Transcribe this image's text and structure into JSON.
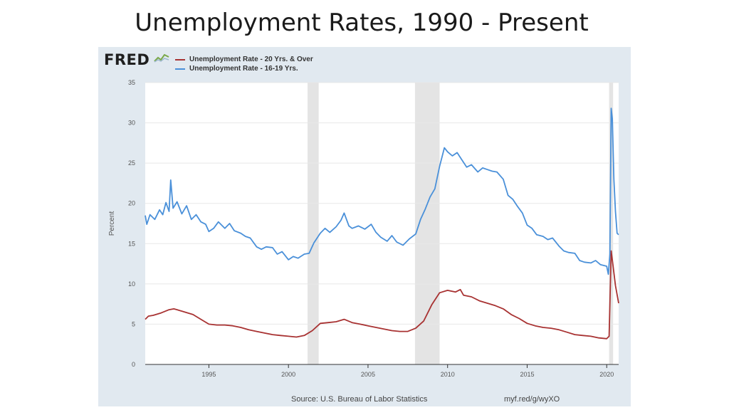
{
  "slide": {
    "title": "Unemployment Rates, 1990 - Present"
  },
  "fred": {
    "logo_text": "FRED",
    "source_text": "Source: U.S. Bureau of Labor Statistics",
    "url_text": "myf.red/g/wyXO",
    "panel_color": "#e1e9f0"
  },
  "chart_data": {
    "type": "line",
    "title": "",
    "xlabel": "",
    "ylabel": "Percent",
    "xlim": [
      1991.0,
      2020.75
    ],
    "ylim": [
      0,
      35
    ],
    "yticks": [
      0,
      5,
      10,
      15,
      20,
      25,
      30,
      35
    ],
    "xticks": [
      1995,
      2000,
      2005,
      2010,
      2015,
      2020
    ],
    "grid": "horizontal",
    "legend_position": "top-left",
    "recessions": [
      [
        2001.2,
        2001.9
      ],
      [
        2007.95,
        2009.5
      ],
      [
        2020.15,
        2020.4
      ]
    ],
    "series": [
      {
        "name": "Unemployment Rate - 20 Yrs. & Over",
        "color": "#a83232",
        "points": [
          [
            1991.0,
            5.6
          ],
          [
            1991.2,
            6.0
          ],
          [
            1991.5,
            6.1
          ],
          [
            1992.0,
            6.4
          ],
          [
            1992.5,
            6.8
          ],
          [
            1992.8,
            6.9
          ],
          [
            1993.0,
            6.8
          ],
          [
            1993.5,
            6.5
          ],
          [
            1994.0,
            6.2
          ],
          [
            1994.5,
            5.6
          ],
          [
            1995.0,
            5.0
          ],
          [
            1995.5,
            4.9
          ],
          [
            1996.0,
            4.9
          ],
          [
            1996.5,
            4.8
          ],
          [
            1997.0,
            4.6
          ],
          [
            1997.5,
            4.3
          ],
          [
            1998.0,
            4.1
          ],
          [
            1998.5,
            3.9
          ],
          [
            1999.0,
            3.7
          ],
          [
            1999.5,
            3.6
          ],
          [
            2000.0,
            3.5
          ],
          [
            2000.5,
            3.4
          ],
          [
            2001.0,
            3.6
          ],
          [
            2001.5,
            4.2
          ],
          [
            2002.0,
            5.1
          ],
          [
            2002.5,
            5.2
          ],
          [
            2003.0,
            5.3
          ],
          [
            2003.5,
            5.6
          ],
          [
            2004.0,
            5.2
          ],
          [
            2004.5,
            5.0
          ],
          [
            2005.0,
            4.8
          ],
          [
            2005.5,
            4.6
          ],
          [
            2006.0,
            4.4
          ],
          [
            2006.5,
            4.2
          ],
          [
            2007.0,
            4.1
          ],
          [
            2007.5,
            4.1
          ],
          [
            2008.0,
            4.5
          ],
          [
            2008.5,
            5.4
          ],
          [
            2009.0,
            7.4
          ],
          [
            2009.5,
            8.9
          ],
          [
            2010.0,
            9.2
          ],
          [
            2010.5,
            9.0
          ],
          [
            2010.8,
            9.3
          ],
          [
            2011.0,
            8.6
          ],
          [
            2011.5,
            8.4
          ],
          [
            2012.0,
            7.9
          ],
          [
            2012.5,
            7.6
          ],
          [
            2013.0,
            7.3
          ],
          [
            2013.5,
            6.9
          ],
          [
            2014.0,
            6.2
          ],
          [
            2014.5,
            5.7
          ],
          [
            2015.0,
            5.1
          ],
          [
            2015.5,
            4.8
          ],
          [
            2016.0,
            4.6
          ],
          [
            2016.5,
            4.5
          ],
          [
            2017.0,
            4.3
          ],
          [
            2017.5,
            4.0
          ],
          [
            2018.0,
            3.7
          ],
          [
            2018.5,
            3.6
          ],
          [
            2019.0,
            3.5
          ],
          [
            2019.5,
            3.3
          ],
          [
            2020.0,
            3.2
          ],
          [
            2020.15,
            3.5
          ],
          [
            2020.28,
            14.1
          ],
          [
            2020.4,
            12.2
          ],
          [
            2020.55,
            9.8
          ],
          [
            2020.75,
            7.6
          ]
        ]
      },
      {
        "name": "Unemployment Rate - 16-19 Yrs.",
        "color": "#4a90d9",
        "points": [
          [
            1991.0,
            18.5
          ],
          [
            1991.1,
            17.4
          ],
          [
            1991.3,
            18.6
          ],
          [
            1991.6,
            18.0
          ],
          [
            1991.9,
            19.2
          ],
          [
            1992.1,
            18.6
          ],
          [
            1992.3,
            20.1
          ],
          [
            1992.5,
            19.0
          ],
          [
            1992.6,
            22.9
          ],
          [
            1992.75,
            19.4
          ],
          [
            1993.0,
            20.2
          ],
          [
            1993.3,
            18.7
          ],
          [
            1993.6,
            19.7
          ],
          [
            1993.9,
            18.0
          ],
          [
            1994.2,
            18.6
          ],
          [
            1994.5,
            17.7
          ],
          [
            1994.8,
            17.4
          ],
          [
            1995.0,
            16.5
          ],
          [
            1995.3,
            16.9
          ],
          [
            1995.6,
            17.7
          ],
          [
            1996.0,
            16.9
          ],
          [
            1996.3,
            17.5
          ],
          [
            1996.6,
            16.6
          ],
          [
            1997.0,
            16.3
          ],
          [
            1997.3,
            15.9
          ],
          [
            1997.6,
            15.7
          ],
          [
            1998.0,
            14.6
          ],
          [
            1998.3,
            14.3
          ],
          [
            1998.6,
            14.6
          ],
          [
            1999.0,
            14.5
          ],
          [
            1999.3,
            13.7
          ],
          [
            1999.6,
            14.0
          ],
          [
            2000.0,
            13.0
          ],
          [
            2000.3,
            13.4
          ],
          [
            2000.6,
            13.2
          ],
          [
            2001.0,
            13.7
          ],
          [
            2001.3,
            13.8
          ],
          [
            2001.6,
            15.1
          ],
          [
            2002.0,
            16.3
          ],
          [
            2002.3,
            16.9
          ],
          [
            2002.6,
            16.4
          ],
          [
            2003.0,
            17.1
          ],
          [
            2003.3,
            17.9
          ],
          [
            2003.5,
            18.8
          ],
          [
            2003.8,
            17.2
          ],
          [
            2004.0,
            16.9
          ],
          [
            2004.4,
            17.2
          ],
          [
            2004.8,
            16.8
          ],
          [
            2005.2,
            17.4
          ],
          [
            2005.5,
            16.4
          ],
          [
            2005.8,
            15.8
          ],
          [
            2006.2,
            15.3
          ],
          [
            2006.5,
            16.0
          ],
          [
            2006.8,
            15.2
          ],
          [
            2007.2,
            14.8
          ],
          [
            2007.6,
            15.6
          ],
          [
            2008.0,
            16.2
          ],
          [
            2008.3,
            18.0
          ],
          [
            2008.6,
            19.3
          ],
          [
            2008.9,
            20.8
          ],
          [
            2009.2,
            21.8
          ],
          [
            2009.5,
            24.6
          ],
          [
            2009.8,
            26.9
          ],
          [
            2010.0,
            26.4
          ],
          [
            2010.3,
            25.9
          ],
          [
            2010.6,
            26.3
          ],
          [
            2010.9,
            25.4
          ],
          [
            2011.2,
            24.5
          ],
          [
            2011.5,
            24.8
          ],
          [
            2011.9,
            23.9
          ],
          [
            2012.2,
            24.4
          ],
          [
            2012.5,
            24.2
          ],
          [
            2012.8,
            24.0
          ],
          [
            2013.1,
            23.9
          ],
          [
            2013.5,
            23.0
          ],
          [
            2013.8,
            21.0
          ],
          [
            2014.1,
            20.5
          ],
          [
            2014.4,
            19.6
          ],
          [
            2014.7,
            18.8
          ],
          [
            2015.0,
            17.3
          ],
          [
            2015.3,
            16.9
          ],
          [
            2015.6,
            16.1
          ],
          [
            2016.0,
            15.9
          ],
          [
            2016.3,
            15.5
          ],
          [
            2016.6,
            15.7
          ],
          [
            2017.0,
            14.7
          ],
          [
            2017.3,
            14.1
          ],
          [
            2017.6,
            13.9
          ],
          [
            2018.0,
            13.8
          ],
          [
            2018.3,
            12.9
          ],
          [
            2018.6,
            12.7
          ],
          [
            2019.0,
            12.6
          ],
          [
            2019.3,
            12.9
          ],
          [
            2019.6,
            12.4
          ],
          [
            2020.0,
            12.2
          ],
          [
            2020.1,
            11.2
          ],
          [
            2020.2,
            13.7
          ],
          [
            2020.28,
            31.8
          ],
          [
            2020.35,
            30.5
          ],
          [
            2020.45,
            23.0
          ],
          [
            2020.55,
            19.0
          ],
          [
            2020.65,
            16.3
          ],
          [
            2020.75,
            16.1
          ]
        ]
      }
    ]
  }
}
